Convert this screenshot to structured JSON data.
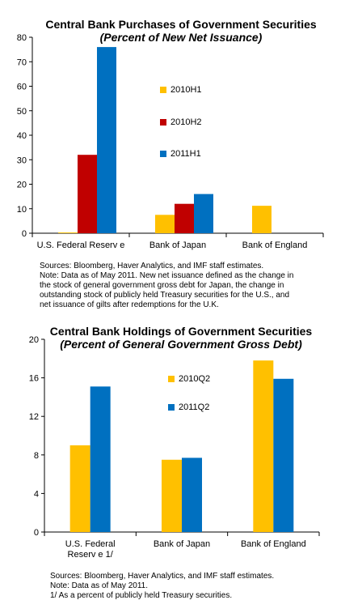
{
  "chart_data": [
    {
      "type": "bar",
      "title": "Central Bank Purchases of Government Securities",
      "subtitle": "(Percent of New Net Issuance)",
      "categories": [
        "U.S. Federal Reserv e",
        "Bank of Japan",
        "Bank of England"
      ],
      "series": [
        {
          "name": "2010H1",
          "color": "#FFC000",
          "values": [
            0.3,
            7.5,
            11.2
          ]
        },
        {
          "name": "2010H2",
          "color": "#C00000",
          "values": [
            32,
            12,
            0
          ]
        },
        {
          "name": "2011H1",
          "color": "#0070C0",
          "values": [
            76,
            16,
            0
          ]
        }
      ],
      "ylim": [
        0,
        80
      ],
      "yticks": [
        0,
        10,
        20,
        30,
        40,
        50,
        60,
        70,
        80
      ],
      "legend_position": "center-inner",
      "notes": [
        "Sources: Bloomberg, Haver Analytics, and IMF staff estimates.",
        "Note: Data as of May 2011. New net issuance defined as the change in",
        "the stock of general government gross debt for Japan, the change in",
        "outstanding stock of publicly held Treasury securities for the U.S., and",
        "net issuance of gilts after redemptions for the U.K."
      ]
    },
    {
      "type": "bar",
      "title": "Central Bank Holdings of Government Securities",
      "subtitle": "(Percent of General Government  Gross Debt)",
      "categories": [
        "U.S. Federal\nReserv e 1/",
        "Bank of Japan",
        "Bank of England"
      ],
      "series": [
        {
          "name": "2010Q2",
          "color": "#FFC000",
          "values": [
            9.0,
            7.5,
            17.8
          ]
        },
        {
          "name": "2011Q2",
          "color": "#0070C0",
          "values": [
            15.1,
            7.7,
            15.9
          ]
        }
      ],
      "ylim": [
        0,
        20
      ],
      "yticks": [
        0,
        4,
        8,
        12,
        16,
        20
      ],
      "legend_position": "upper-middle",
      "notes": [
        "Sources: Bloomberg, Haver Analytics, and IMF staff estimates.",
        "Note: Data as of May 2011.",
        "1/ As a percent of publicly held Treasury securities."
      ]
    }
  ]
}
